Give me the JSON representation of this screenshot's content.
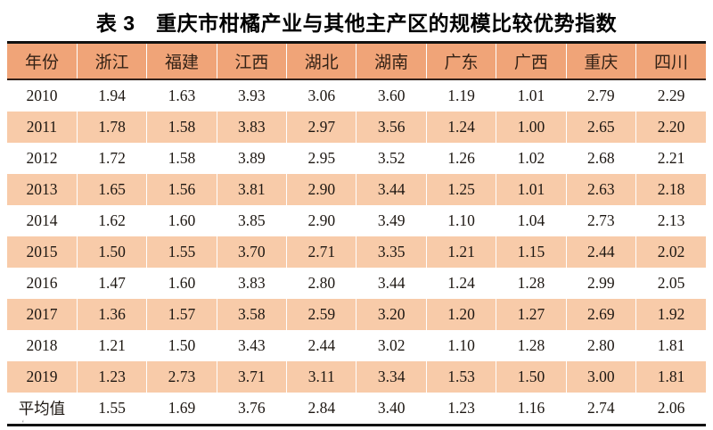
{
  "title": "表 3　重庆市柑橘产业与其他主产区的规模比较优势指数",
  "stray_mark": "ʻ",
  "colors": {
    "header_bg": "#F0A478",
    "stripe_bg": "#F8CBA9",
    "rule": "#111111",
    "header_text": "#332216",
    "body_text": "#1D1712"
  },
  "chart_data": {
    "type": "table",
    "title": "表 3　重庆市柑橘产业与其他主产区的规模比较优势指数",
    "columns": [
      "年份",
      "浙江",
      "福建",
      "江西",
      "湖北",
      "湖南",
      "广东",
      "广西",
      "重庆",
      "四川"
    ],
    "rows": [
      [
        "2010",
        "1.94",
        "1.63",
        "3.93",
        "3.06",
        "3.60",
        "1.19",
        "1.01",
        "2.79",
        "2.29"
      ],
      [
        "2011",
        "1.78",
        "1.58",
        "3.83",
        "2.97",
        "3.56",
        "1.24",
        "1.00",
        "2.65",
        "2.20"
      ],
      [
        "2012",
        "1.72",
        "1.58",
        "3.89",
        "2.95",
        "3.52",
        "1.26",
        "1.02",
        "2.68",
        "2.21"
      ],
      [
        "2013",
        "1.65",
        "1.56",
        "3.81",
        "2.90",
        "3.44",
        "1.25",
        "1.01",
        "2.63",
        "2.18"
      ],
      [
        "2014",
        "1.62",
        "1.60",
        "3.85",
        "2.90",
        "3.49",
        "1.10",
        "1.04",
        "2.73",
        "2.13"
      ],
      [
        "2015",
        "1.50",
        "1.55",
        "3.70",
        "2.71",
        "3.35",
        "1.21",
        "1.15",
        "2.44",
        "2.02"
      ],
      [
        "2016",
        "1.47",
        "1.60",
        "3.83",
        "2.80",
        "3.44",
        "1.24",
        "1.28",
        "2.99",
        "2.05"
      ],
      [
        "2017",
        "1.36",
        "1.57",
        "3.58",
        "2.59",
        "3.20",
        "1.20",
        "1.27",
        "2.69",
        "1.92"
      ],
      [
        "2018",
        "1.21",
        "1.50",
        "3.43",
        "2.44",
        "3.02",
        "1.10",
        "1.28",
        "2.80",
        "1.81"
      ],
      [
        "2019",
        "1.23",
        "2.73",
        "3.71",
        "3.11",
        "3.34",
        "1.53",
        "1.50",
        "3.00",
        "1.81"
      ],
      [
        "平均值",
        "1.55",
        "1.69",
        "3.76",
        "2.84",
        "3.40",
        "1.23",
        "1.16",
        "2.74",
        "2.06"
      ]
    ],
    "striped_rows": [
      1,
      3,
      5,
      7,
      9
    ],
    "layout": "header row salmon, data rows alternate white/peach, thick black top and bottom rules"
  }
}
